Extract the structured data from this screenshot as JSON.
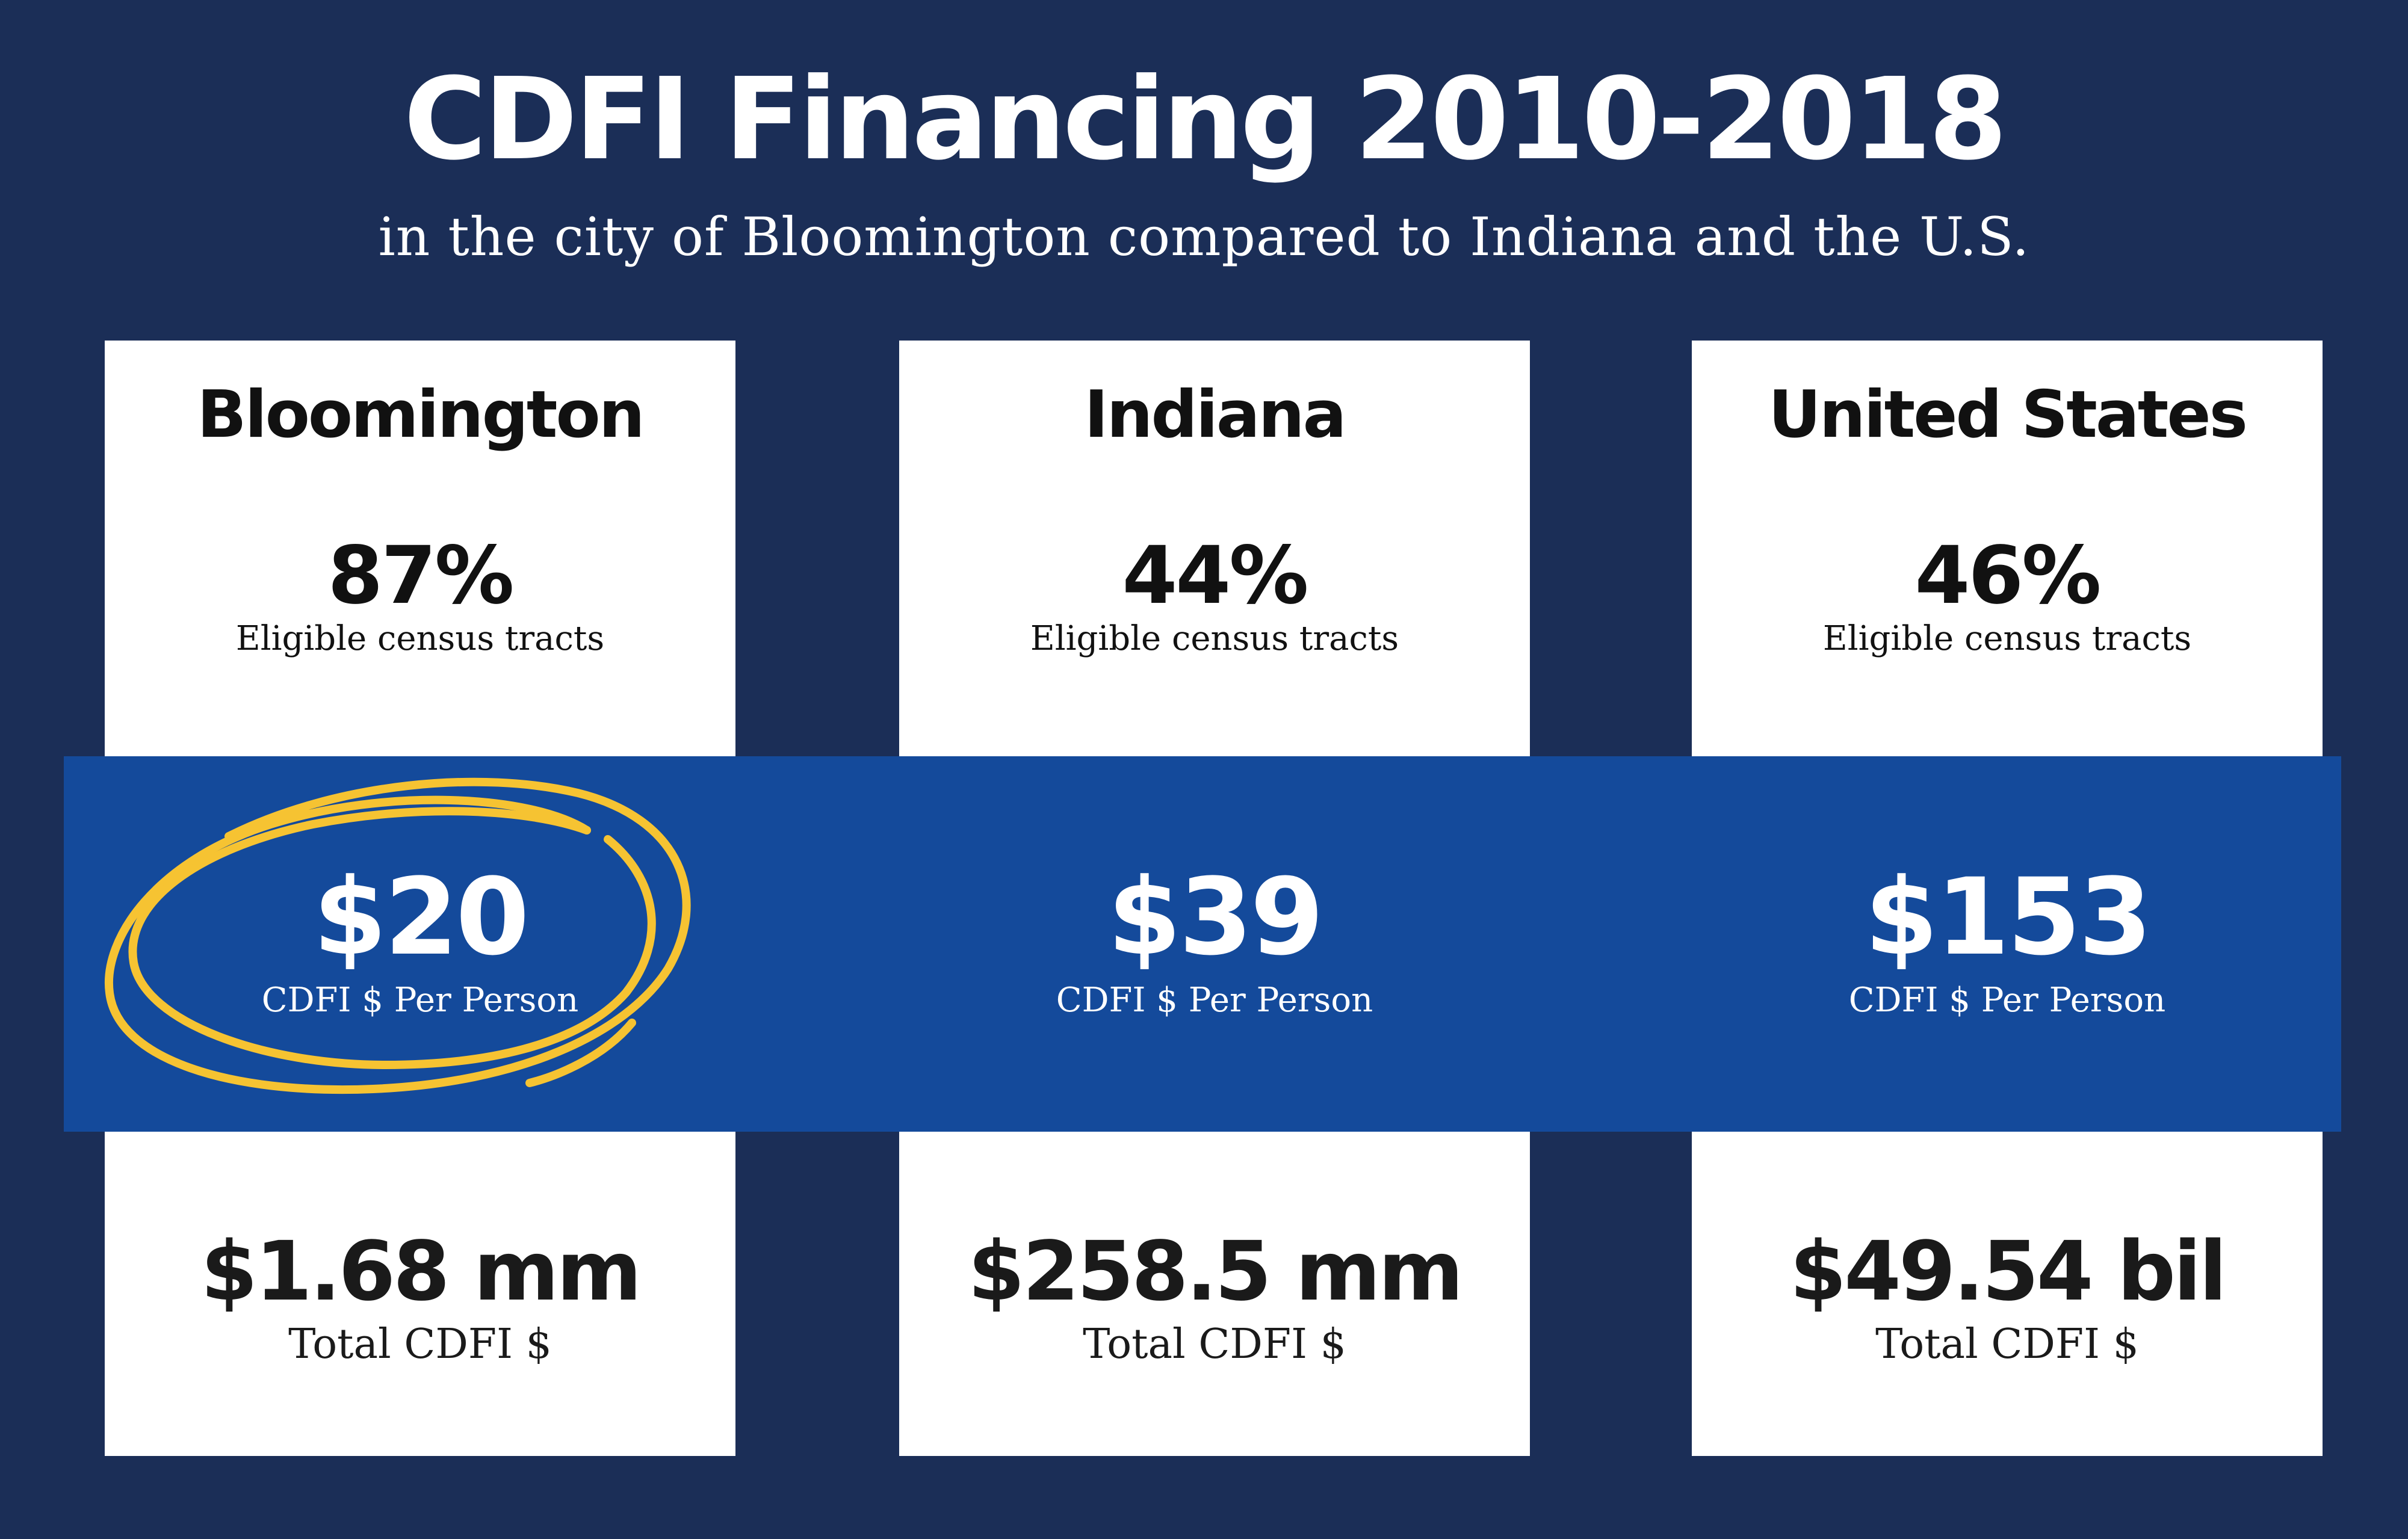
{
  "title": "CDFI Financing 2010-2018",
  "subtitle": "in the city of Bloomington compared to Indiana and the U.S.",
  "colors": {
    "background": "#1b2e57",
    "band": "#144a9b",
    "card": "#ffffff",
    "highlight": "#f6c332"
  },
  "regions": [
    {
      "name": "Bloomington",
      "eligible_pct": "87%",
      "eligible_label": "Eligible census tracts",
      "per_person": "$20",
      "per_person_label": "CDFI $ Per Person",
      "total": "$1.68 mm",
      "total_label": "Total CDFI $",
      "highlighted": true
    },
    {
      "name": "Indiana",
      "eligible_pct": "44%",
      "eligible_label": "Eligible census tracts",
      "per_person": "$39",
      "per_person_label": "CDFI $ Per Person",
      "total": "$258.5 mm",
      "total_label": "Total CDFI $",
      "highlighted": false
    },
    {
      "name": "United States",
      "eligible_pct": "46%",
      "eligible_label": "Eligible census tracts",
      "per_person": "$153",
      "per_person_label": "CDFI $ Per Person",
      "total": "$49.54 bil",
      "total_label": "Total CDFI $",
      "highlighted": false
    }
  ]
}
